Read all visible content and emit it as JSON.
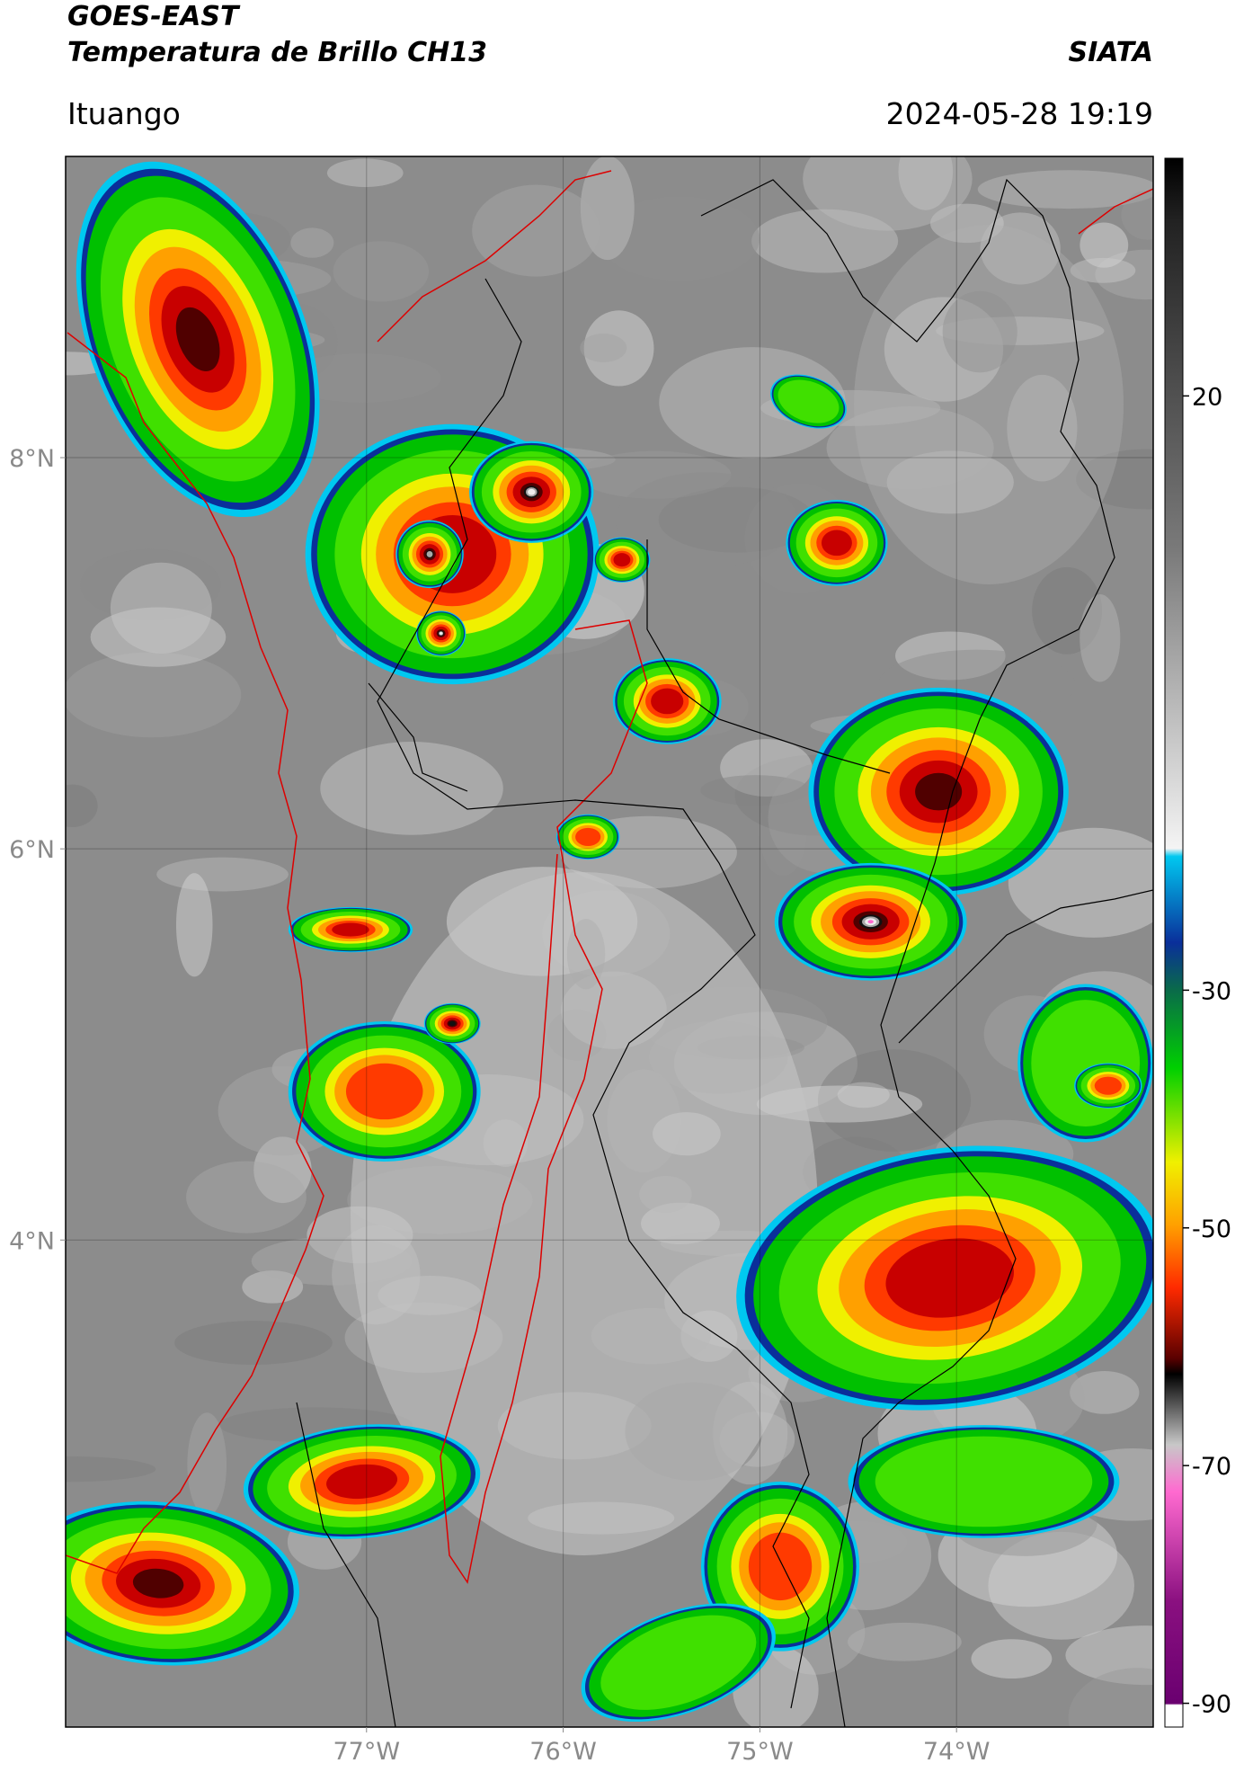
{
  "header": {
    "title": "GOES-EAST",
    "subtitle": "Temperatura de Brillo CH13",
    "source": "SIATA",
    "location": "Ituango",
    "datetime": "2024-05-28 19:19"
  },
  "map": {
    "xlim": [
      -78.53,
      -73.0
    ],
    "ylim": [
      1.51,
      9.54
    ],
    "xticks": [
      {
        "value": -77,
        "label": "77°W"
      },
      {
        "value": -76,
        "label": "76°W"
      },
      {
        "value": -75,
        "label": "75°W"
      },
      {
        "value": -74,
        "label": "74°W"
      }
    ],
    "yticks": [
      {
        "value": 4,
        "label": "4°N"
      },
      {
        "value": 6,
        "label": "6°N"
      },
      {
        "value": 8,
        "label": "8°N"
      }
    ],
    "grid": true
  },
  "colorbar": {
    "lim": [
      -92,
      40
    ],
    "ticks": [
      20,
      -30,
      -50,
      -70,
      -90
    ]
  }
}
